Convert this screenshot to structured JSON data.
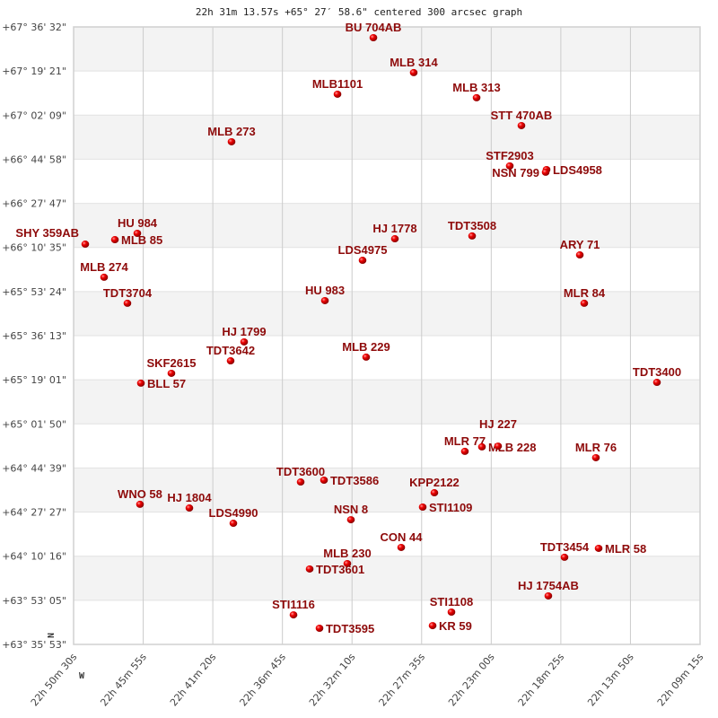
{
  "chart_data": {
    "type": "scatter",
    "title": "22h 31m 13.57s +65° 27′ 58.6\" centered 300 arcsec graph",
    "x_axis": {
      "quantity": "right ascension (deg)",
      "range": [
        342.625,
        332.3125
      ],
      "direction": "decreasing to right",
      "tick_labels": [
        "22h 50m 30s",
        "22h 45m 55s",
        "22h 41m 20s",
        "22h 36m 45s",
        "22h 32m 10s",
        "22h 27m 35s",
        "22h 23m 00s",
        "22h 18m 25s",
        "22h 13m 50s",
        "22h 09m 15s"
      ]
    },
    "y_axis": {
      "quantity": "declination (deg)",
      "range": [
        63.5981,
        67.6089
      ],
      "tick_labels": [
        "+67° 36' 32\"",
        "+67° 19' 21\"",
        "+67° 02' 09\"",
        "+66° 44' 58\"",
        "+66° 27' 47\"",
        "+66° 10' 35\"",
        "+65° 53' 24\"",
        "+65° 36' 13\"",
        "+65° 19' 01\"",
        "+65° 01' 50\"",
        "+64° 44' 39\"",
        "+64° 27' 27\"",
        "+64° 10' 16\"",
        "+63° 53' 05\"",
        "+63° 35' 53\""
      ]
    },
    "orientation_labels": {
      "north": "N",
      "west": "W"
    },
    "grid": true,
    "banded_rows": true,
    "colors": {
      "point": "#dd0000",
      "label": "#8e0a0a",
      "band": "#f3f3f3",
      "grid": "#cccccc"
    },
    "points": [
      {
        "name": "BU 704AB",
        "ra": 337.69,
        "dec": 67.539
      },
      {
        "name": "MLB 314",
        "ra": 337.026,
        "dec": 67.312
      },
      {
        "name": "MLB1101",
        "ra": 338.281,
        "dec": 67.172
      },
      {
        "name": "MLB 313",
        "ra": 335.991,
        "dec": 67.149
      },
      {
        "name": "STT 470AB",
        "ra": 335.253,
        "dec": 66.968
      },
      {
        "name": "MLB 273",
        "ra": 340.025,
        "dec": 66.863
      },
      {
        "name": "STF2903",
        "ra": 335.445,
        "dec": 66.706
      },
      {
        "name": "LDS4958",
        "ra": 334.839,
        "dec": 66.682
      },
      {
        "name": "NSN 799",
        "ra": 334.854,
        "dec": 66.665
      },
      {
        "name": "HU  984",
        "ra": 341.576,
        "dec": 66.268
      },
      {
        "name": "MLB  85",
        "ra": 341.945,
        "dec": 66.227
      },
      {
        "name": "SHY 359AB",
        "ra": 342.433,
        "dec": 66.198
      },
      {
        "name": "HJ 1778",
        "ra": 337.336,
        "dec": 66.233
      },
      {
        "name": "TDT3508",
        "ra": 336.065,
        "dec": 66.251
      },
      {
        "name": "ARY  71",
        "ra": 334.292,
        "dec": 66.128
      },
      {
        "name": "LDS4975",
        "ra": 337.868,
        "dec": 66.093
      },
      {
        "name": "MLB 274",
        "ra": 342.123,
        "dec": 65.983
      },
      {
        "name": "TDT3704",
        "ra": 341.739,
        "dec": 65.814
      },
      {
        "name": "HU  983",
        "ra": 338.488,
        "dec": 65.831
      },
      {
        "name": "MLR  84",
        "ra": 334.219,
        "dec": 65.814
      },
      {
        "name": "HJ 1799",
        "ra": 339.818,
        "dec": 65.563
      },
      {
        "name": "TDT3642",
        "ra": 340.04,
        "dec": 65.44
      },
      {
        "name": "MLB 229",
        "ra": 337.809,
        "dec": 65.464
      },
      {
        "name": "SKF2615",
        "ra": 341.015,
        "dec": 65.359
      },
      {
        "name": "BLL  57",
        "ra": 341.517,
        "dec": 65.295
      },
      {
        "name": "TDT3400",
        "ra": 333.022,
        "dec": 65.3
      },
      {
        "name": "MLR  77",
        "ra": 336.184,
        "dec": 64.852
      },
      {
        "name": "MLB 228",
        "ra": 335.903,
        "dec": 64.881
      },
      {
        "name": "HJ  227",
        "ra": 335.637,
        "dec": 64.886
      },
      {
        "name": "MLR  76",
        "ra": 334.027,
        "dec": 64.811
      },
      {
        "name": "TDT3600",
        "ra": 338.887,
        "dec": 64.653
      },
      {
        "name": "TDT3586",
        "ra": 338.503,
        "dec": 64.665
      },
      {
        "name": "KPP2122",
        "ra": 336.686,
        "dec": 64.583
      },
      {
        "name": "STI1109",
        "ra": 336.878,
        "dec": 64.49
      },
      {
        "name": "WNO  58",
        "ra": 341.532,
        "dec": 64.508
      },
      {
        "name": "HJ 1804",
        "ra": 340.719,
        "dec": 64.484
      },
      {
        "name": "LDS4990",
        "ra": 339.995,
        "dec": 64.385
      },
      {
        "name": "NSN   8",
        "ra": 338.06,
        "dec": 64.408
      },
      {
        "name": "CON  44",
        "ra": 337.232,
        "dec": 64.228
      },
      {
        "name": "MLB 230",
        "ra": 338.119,
        "dec": 64.123
      },
      {
        "name": "TDT3601",
        "ra": 338.739,
        "dec": 64.088
      },
      {
        "name": "TDT3454",
        "ra": 334.544,
        "dec": 64.164
      },
      {
        "name": "MLR  58",
        "ra": 333.982,
        "dec": 64.222
      },
      {
        "name": "HJ 1754AB",
        "ra": 334.81,
        "dec": 63.913
      },
      {
        "name": "STI1116",
        "ra": 339.005,
        "dec": 63.79
      },
      {
        "name": "TDT3595",
        "ra": 338.577,
        "dec": 63.703
      },
      {
        "name": "STI1108",
        "ra": 336.405,
        "dec": 63.808
      },
      {
        "name": "KR   59",
        "ra": 336.715,
        "dec": 63.72
      }
    ]
  }
}
